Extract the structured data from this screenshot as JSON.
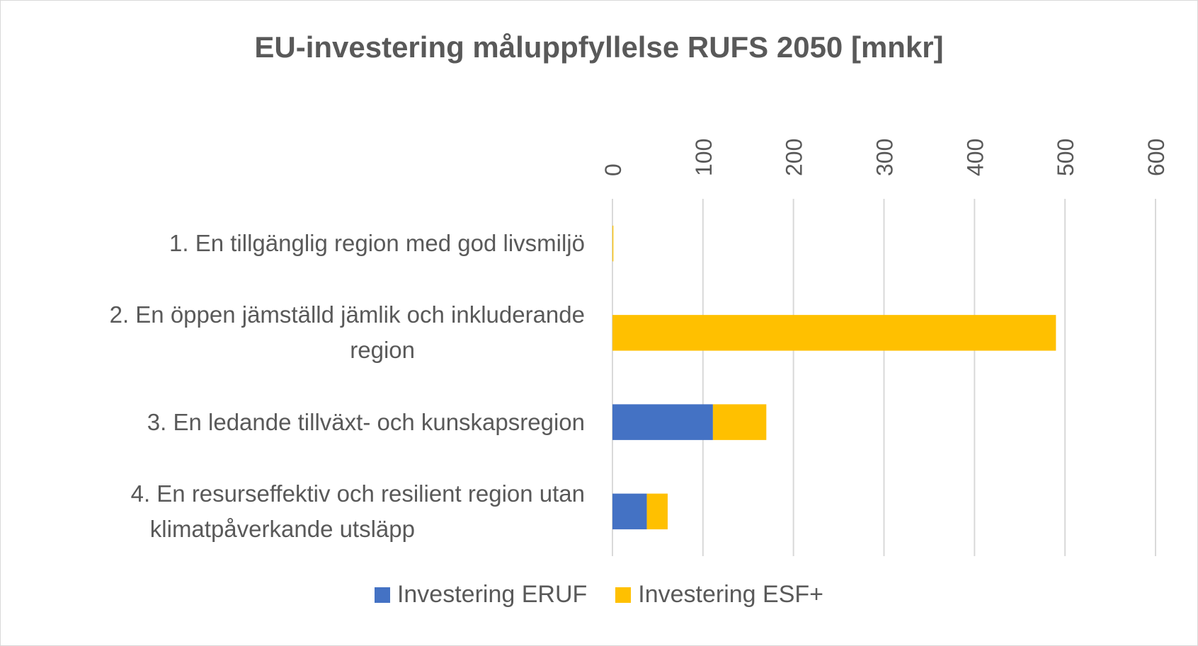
{
  "chart_data": {
    "type": "bar",
    "orientation": "horizontal",
    "stacked": true,
    "title": "EU-investering måluppfyllelse RUFS 2050 [mnkr]",
    "categories": [
      "1. En tillgänglig region med god livsmiljö",
      "2. En öppen jämställd jämlik och inkluderande region",
      "3. En ledande tillväxt- och kunskapsregion",
      "4. En resurseffektiv och resilient region utan klimatpåverkande utsläpp"
    ],
    "category_lines": [
      [
        "1. En tillgänglig region med god livsmiljö"
      ],
      [
        "2. En öppen jämställd jämlik och inkluderande",
        "region"
      ],
      [
        "3. En ledande tillväxt- och kunskapsregion"
      ],
      [
        "4. En resurseffektiv och resilient region utan",
        "klimatpåverkande utsläpp"
      ]
    ],
    "series": [
      {
        "name": "Investering ERUF",
        "values": [
          0,
          0,
          111,
          38
        ],
        "color": "#4472C4"
      },
      {
        "name": "Investering ESF+",
        "values": [
          1,
          490,
          59,
          23
        ],
        "color": "#FFC000"
      }
    ],
    "xlim": [
      0,
      600
    ],
    "ticks": [
      "0",
      "100",
      "200",
      "300",
      "400",
      "500",
      "600"
    ],
    "axis_position": "top",
    "grid": true,
    "legend": "bottom"
  }
}
